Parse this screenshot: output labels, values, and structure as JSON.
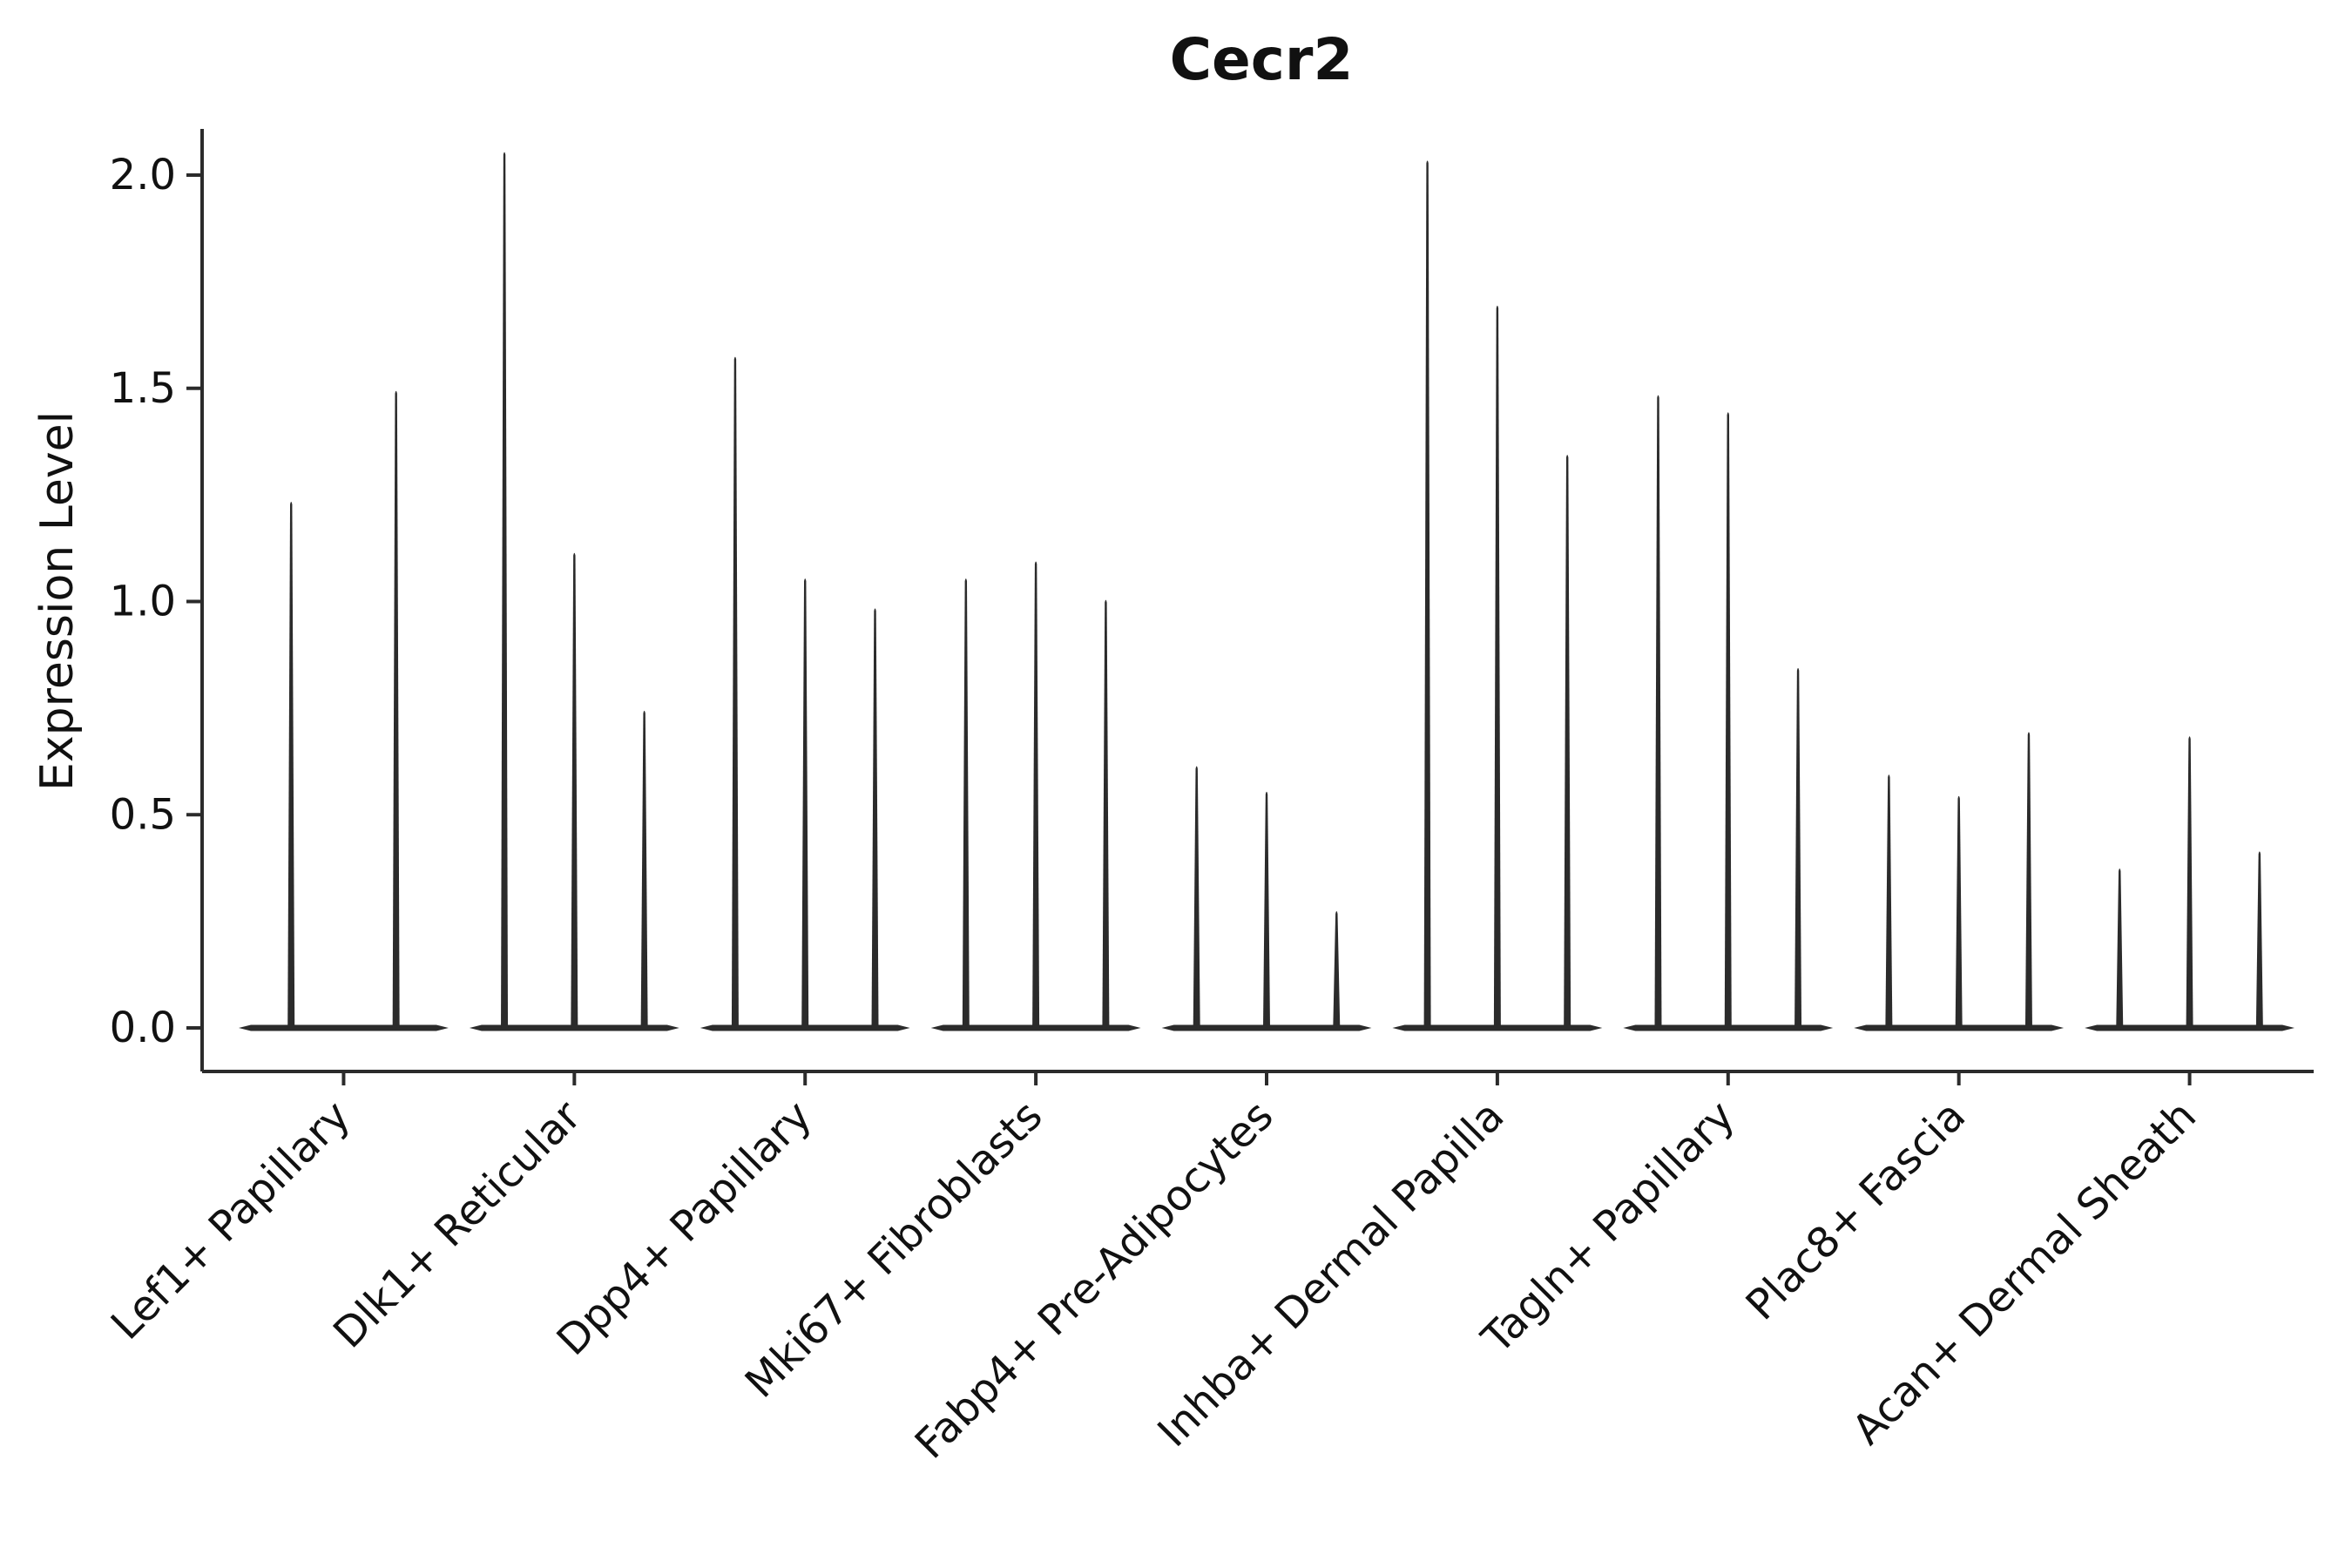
{
  "chart_data": {
    "type": "violin",
    "title": "Cecr2",
    "ylabel": "Expression Level",
    "xlabel": "",
    "ylim": [
      -0.1,
      2.15
    ],
    "yticks": [
      0.0,
      0.5,
      1.0,
      1.5,
      2.0
    ],
    "ytick_labels": [
      "0.0",
      "0.5",
      "1.0",
      "1.5",
      "2.0"
    ],
    "grid": false,
    "legend": false,
    "ink_color": "#2b2b2b",
    "background_color": "#ffffff",
    "baseline_value": 0.0,
    "categories": [
      "Lef1+ Papillary",
      "Dlk1+ Reticular",
      "Dpp4+ Papillary",
      "Mki67+ Fibroblasts",
      "Fabp4+ Pre-Adipocytes",
      "Inhba+ Dermal Papilla",
      "Tagln+ Papillary",
      "Plac8+ Fascia",
      "Acan+ Dermal Sheath"
    ],
    "series": [
      {
        "category": "Lef1+ Papillary",
        "spike_maxima": [
          1.24,
          1.5
        ]
      },
      {
        "category": "Dlk1+ Reticular",
        "spike_maxima": [
          2.06,
          1.12,
          0.75
        ]
      },
      {
        "category": "Dpp4+ Papillary",
        "spike_maxima": [
          1.58,
          1.06,
          0.99
        ]
      },
      {
        "category": "Mki67+ Fibroblasts",
        "spike_maxima": [
          1.06,
          1.1,
          1.01
        ]
      },
      {
        "category": "Fabp4+ Pre-Adipocytes",
        "spike_maxima": [
          0.62,
          0.56,
          0.28
        ]
      },
      {
        "category": "Inhba+ Dermal Papilla",
        "spike_maxima": [
          2.04,
          1.7,
          1.35
        ]
      },
      {
        "category": "Tagln+ Papillary",
        "spike_maxima": [
          1.49,
          1.45,
          0.85
        ]
      },
      {
        "category": "Plac8+ Fascia",
        "spike_maxima": [
          0.6,
          0.55,
          0.7
        ]
      },
      {
        "category": "Acan+ Dermal Sheath",
        "spike_maxima": [
          0.38,
          0.69,
          0.42
        ]
      }
    ]
  }
}
